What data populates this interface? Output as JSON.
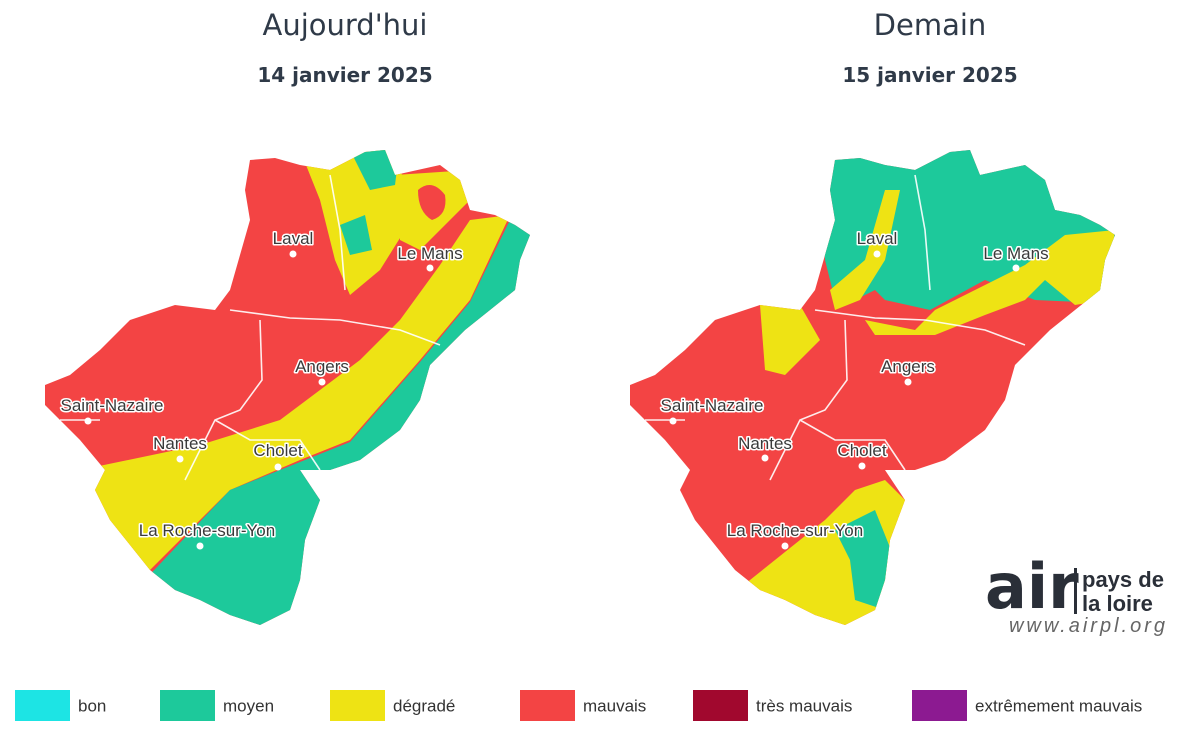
{
  "maps": [
    {
      "title": "Aujourd'hui",
      "date": "14 janvier 2025",
      "cities": [
        "Laval",
        "Le Mans",
        "Angers",
        "Saint-Nazaire",
        "Nantes",
        "Cholet",
        "La Roche-sur-Yon"
      ]
    },
    {
      "title": "Demain",
      "date": "15 janvier 2025",
      "cities": [
        "Laval",
        "Le Mans",
        "Angers",
        "Saint-Nazaire",
        "Nantes",
        "Cholet",
        "La Roche-sur-Yon"
      ]
    }
  ],
  "legend": [
    {
      "label": "bon",
      "color": "#1de4e4"
    },
    {
      "label": "moyen",
      "color": "#1dc99b"
    },
    {
      "label": "dégradé",
      "color": "#eee314"
    },
    {
      "label": "mauvais",
      "color": "#f34444"
    },
    {
      "label": "très mauvais",
      "color": "#a1082e"
    },
    {
      "label": "extrêmement mauvais",
      "color": "#8c1a91"
    }
  ],
  "logo": {
    "brand": "air",
    "line1": "pays de",
    "line2": "la loire",
    "url": "www.airpl.org"
  }
}
